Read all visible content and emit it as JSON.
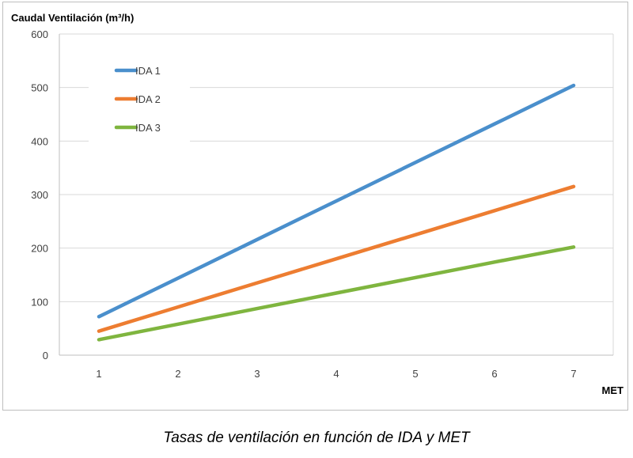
{
  "chart_data": {
    "type": "line",
    "ylabel": "Caudal Ventilación (m³/h)",
    "xlabel": "MET",
    "x": [
      1,
      2,
      3,
      4,
      5,
      6,
      7
    ],
    "xlim": [
      0.5,
      7.5
    ],
    "ylim": [
      0,
      600
    ],
    "yticks": [
      0,
      100,
      200,
      300,
      400,
      500,
      600
    ],
    "grid": true,
    "legend_position": "top-left",
    "series": [
      {
        "name": "IDA 1",
        "color": "#4a8fcc",
        "values": [
          72,
          144,
          216,
          288,
          360,
          432,
          504
        ]
      },
      {
        "name": "IDA 2",
        "color": "#ed7d31",
        "values": [
          45,
          90,
          135,
          180,
          225,
          270,
          315
        ]
      },
      {
        "name": "IDA 3",
        "color": "#7fb53f",
        "values": [
          29,
          58,
          87,
          116,
          145,
          174,
          202
        ]
      }
    ]
  },
  "caption": "Tasas de ventilación en función de IDA y MET"
}
